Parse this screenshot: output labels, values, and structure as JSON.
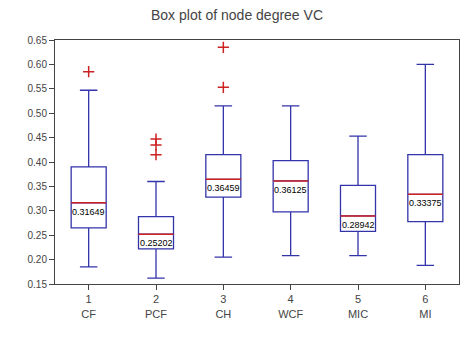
{
  "chart_data": {
    "type": "box",
    "title": "Box plot of node degree VC",
    "x": [
      1,
      2,
      3,
      4,
      5,
      6
    ],
    "categories": [
      "CF",
      "PCF",
      "CH",
      "WCF",
      "MIC",
      "MI"
    ],
    "boxes": [
      {
        "q1": 0.265,
        "median": 0.31649,
        "q3": 0.39,
        "whisker_low": 0.185,
        "whisker_high": 0.547,
        "outliers": [
          0.585
        ]
      },
      {
        "q1": 0.222,
        "median": 0.25202,
        "q3": 0.288,
        "whisker_low": 0.162,
        "whisker_high": 0.36,
        "outliers": [
          0.415,
          0.435,
          0.447
        ]
      },
      {
        "q1": 0.328,
        "median": 0.36459,
        "q3": 0.415,
        "whisker_low": 0.205,
        "whisker_high": 0.515,
        "outliers": [
          0.553,
          0.635
        ]
      },
      {
        "q1": 0.298,
        "median": 0.36125,
        "q3": 0.403,
        "whisker_low": 0.208,
        "whisker_high": 0.515,
        "outliers": []
      },
      {
        "q1": 0.258,
        "median": 0.28942,
        "q3": 0.352,
        "whisker_low": 0.208,
        "whisker_high": 0.453,
        "outliers": []
      },
      {
        "q1": 0.278,
        "median": 0.33375,
        "q3": 0.415,
        "whisker_low": 0.188,
        "whisker_high": 0.6,
        "outliers": []
      }
    ],
    "color": "#3333aa",
    "median_color": "#cc2222",
    "outlier_color": "#cc2222",
    "xlim": [
      0.5,
      6.5
    ],
    "xticks": [
      1,
      2,
      3,
      4,
      5,
      6
    ],
    "ylim": [
      0.15,
      0.65
    ],
    "yticks": [
      0.15,
      {
        "value": 0.2,
        "label": "0.20"
      },
      0.25,
      {
        "value": 0.3,
        "label": "0.30"
      },
      0.35,
      {
        "value": 0.4,
        "label": "0.40"
      },
      0.45,
      {
        "value": 0.5,
        "label": "0.50"
      },
      0.55,
      {
        "value": 0.6,
        "label": "0.60"
      },
      0.65
    ],
    "data_labels": true,
    "grid": false
  }
}
